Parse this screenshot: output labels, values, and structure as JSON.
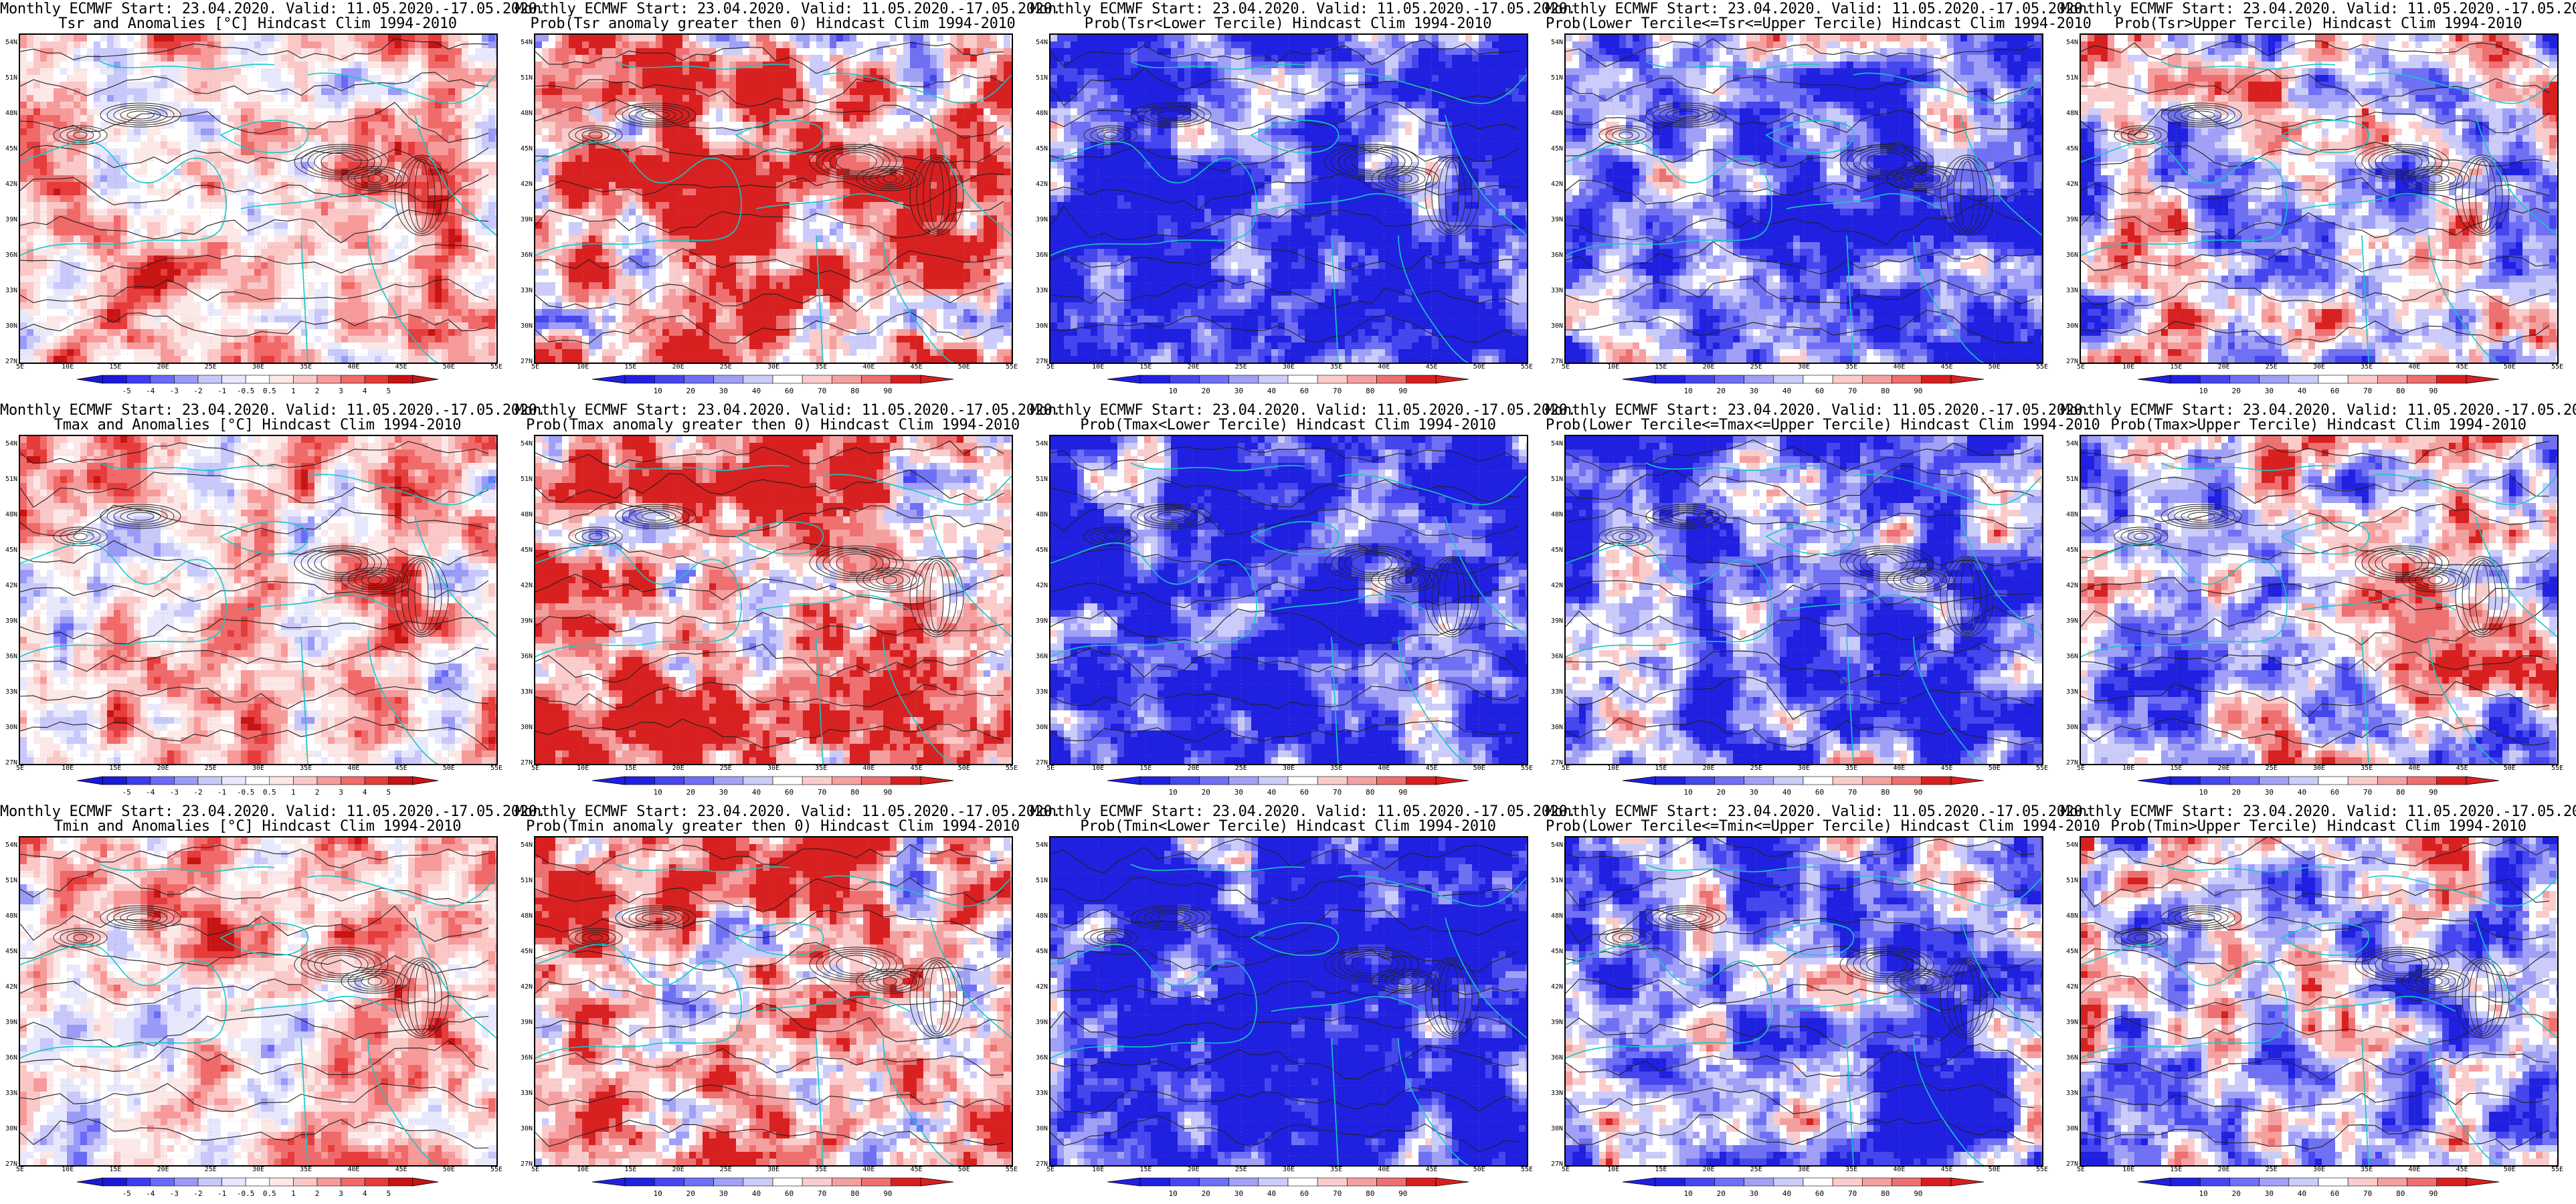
{
  "colors": {
    "contour": "#202020",
    "coast": "#14c8c8",
    "diverging": [
      "#1a1ad6",
      "#3c3cf0",
      "#6a6af8",
      "#9a9af8",
      "#c8c8fb",
      "#e8e8fd",
      "#ffffff",
      "#fde8e8",
      "#fbc8c8",
      "#f79a9a",
      "#f06a6a",
      "#e63c3c",
      "#c81414"
    ],
    "prob": [
      "#2020e0",
      "#4646ee",
      "#7070f4",
      "#a0a0f6",
      "#ccccfa",
      "#ffffff",
      "#fbcccc",
      "#f5a0a0",
      "#ee7070",
      "#d82020"
    ]
  },
  "header_line1": "Monthly ECMWF Start: 23.04.2020. Valid: 11.05.2020.-17.05.2020.",
  "lat_labels": [
    "54N",
    "51N",
    "48N",
    "45N",
    "42N",
    "39N",
    "36N",
    "33N",
    "30N",
    "27N"
  ],
  "lon_labels": [
    "5E",
    "10E",
    "15E",
    "20E",
    "25E",
    "30E",
    "35E",
    "40E",
    "45E",
    "50E",
    "55E"
  ],
  "anomaly_ticks": [
    "-5",
    "-4",
    "-3",
    "-2",
    "-1",
    "-0.5",
    "0.5",
    "1",
    "2",
    "3",
    "4",
    "5"
  ],
  "prob_ticks": [
    "10",
    "20",
    "30",
    "40",
    "60",
    "70",
    "80",
    "90"
  ],
  "panels": [
    {
      "title2": "Tsr and Anomalies [°C] Hindcast Clim 1994-2010",
      "scheme": "anom",
      "bias": 0.55
    },
    {
      "title2": "Prob(Tsr anomaly greater then 0) Hindcast Clim 1994-2010",
      "scheme": "prob",
      "bias": 0.75
    },
    {
      "title2": "Prob(Tsr<Lower Tercile) Hindcast Clim 1994-2010",
      "scheme": "prob",
      "bias": 0.12
    },
    {
      "title2": "Prob(Lower Tercile<=Tsr<=Upper Tercile) Hindcast Clim 1994-2010",
      "scheme": "prob",
      "bias": 0.28
    },
    {
      "title2": "Prob(Tsr>Upper Tercile) Hindcast Clim 1994-2010",
      "scheme": "prob",
      "bias": 0.5
    },
    {
      "title2": "Tmax and Anomalies [°C] Hindcast Clim 1994-2010",
      "scheme": "anom",
      "bias": 0.58
    },
    {
      "title2": "Prob(Tmax anomaly greater then 0) Hindcast Clim 1994-2010",
      "scheme": "prob",
      "bias": 0.76
    },
    {
      "title2": "Prob(Tmax<Lower Tercile) Hindcast Clim 1994-2010",
      "scheme": "prob",
      "bias": 0.14
    },
    {
      "title2": "Prob(Lower Tercile<=Tmax<=Upper Tercile) Hindcast Clim 1994-2010",
      "scheme": "prob",
      "bias": 0.27
    },
    {
      "title2": "Prob(Tmax>Upper Tercile) Hindcast Clim 1994-2010",
      "scheme": "prob",
      "bias": 0.5
    },
    {
      "title2": "Tmin and Anomalies [°C] Hindcast Clim 1994-2010",
      "scheme": "anom",
      "bias": 0.56
    },
    {
      "title2": "Prob(Tmin anomaly greater then 0) Hindcast Clim 1994-2010",
      "scheme": "prob",
      "bias": 0.74
    },
    {
      "title2": "Prob(Tmin<Lower Tercile) Hindcast Clim 1994-2010",
      "scheme": "prob",
      "bias": 0.1
    },
    {
      "title2": "Prob(Lower Tercile<=Tmin<=Upper Tercile) Hindcast Clim 1994-2010",
      "scheme": "prob",
      "bias": 0.3
    },
    {
      "title2": "Prob(Tmin>Upper Tercile) Hindcast Clim 1994-2010",
      "scheme": "prob",
      "bias": 0.46
    }
  ]
}
